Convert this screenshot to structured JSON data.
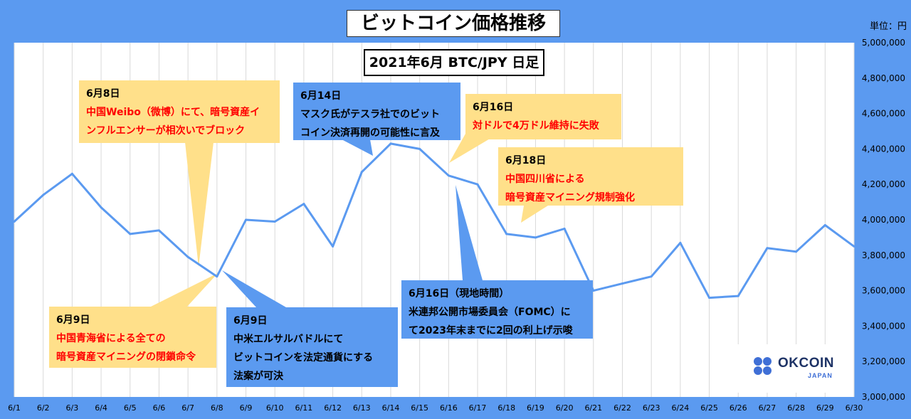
{
  "chart_data": {
    "type": "line",
    "title": "ビットコイン価格推移",
    "subtitle": "2021年6月 BTC/JPY 日足",
    "unit_label": "単位：円",
    "categories": [
      "6/1",
      "6/2",
      "6/3",
      "6/4",
      "6/5",
      "6/6",
      "6/7",
      "6/8",
      "6/9",
      "6/10",
      "6/11",
      "6/12",
      "6/13",
      "6/14",
      "6/15",
      "6/16",
      "6/17",
      "6/18",
      "6/19",
      "6/20",
      "6/21",
      "6/22",
      "6/23",
      "6/24",
      "6/25",
      "6/26",
      "6/27",
      "6/28",
      "6/29",
      "6/30"
    ],
    "values": [
      3990000,
      4140000,
      4260000,
      4070000,
      3920000,
      3940000,
      3790000,
      3680000,
      4000000,
      3990000,
      4090000,
      3850000,
      4270000,
      4430000,
      4400000,
      4250000,
      4200000,
      3920000,
      3900000,
      3950000,
      3600000,
      3640000,
      3680000,
      3870000,
      3560000,
      3570000,
      3840000,
      3820000,
      3970000,
      3850000
    ],
    "ylim": [
      3000000,
      5000000
    ],
    "yticks": [
      "3,000,000",
      "3,200,000",
      "3,400,000",
      "3,600,000",
      "3,800,000",
      "4,000,000",
      "4,200,000",
      "4,400,000",
      "4,600,000",
      "4,800,000",
      "5,000,000"
    ],
    "series_color": "#5b9af0",
    "grid": true
  },
  "annotations": [
    {
      "date": "6月8日",
      "text": [
        "中国Weibo（微博）にて、暗号資産イ",
        "ンフルエンサーが相次いでブロック"
      ]
    },
    {
      "date": "6月9日",
      "text": [
        "中国青海省による全ての",
        "暗号資産マイニングの閉鎖命令"
      ]
    },
    {
      "date": "6月9日",
      "text": [
        "中米エルサルバドルにて",
        "ビットコインを法定通貨にする",
        "法案が可決"
      ]
    },
    {
      "date": "6月14日",
      "text": [
        "マスク氏がテスラ社でのビット",
        "コイン決済再開の可能性に言及"
      ]
    },
    {
      "date": "6月16日",
      "text": [
        "対ドルで4万ドル維持に失敗"
      ]
    },
    {
      "date": "6月18日",
      "text": [
        "中国四川省による",
        "暗号資産マイニング規制強化"
      ]
    },
    {
      "date": "6月16日（現地時間）",
      "text": [
        "米連邦公開市場委員会（FOMC）に",
        "て2023年末までに2回の利上げ示唆"
      ]
    }
  ],
  "logo": {
    "name": "OKCOIN",
    "sub": "JAPAN"
  }
}
